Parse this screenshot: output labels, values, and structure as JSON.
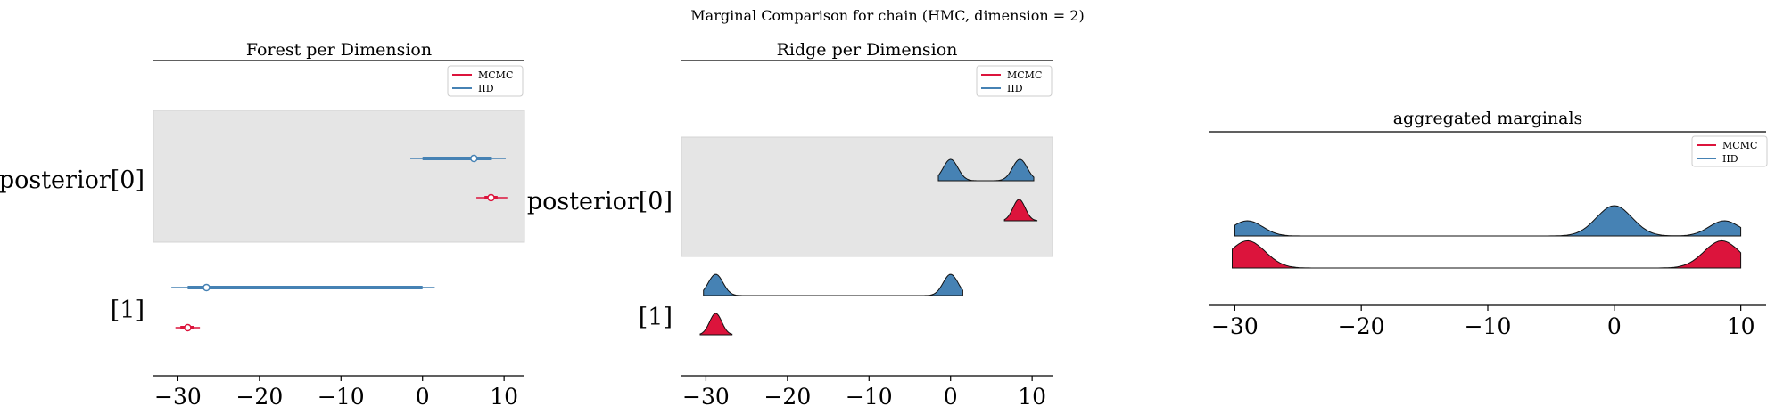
{
  "figure": {
    "suptitle": "Marginal Comparison for chain (HMC, dimension = 2)"
  },
  "colors": {
    "mcmc": "#dc143c",
    "iid": "#4682b4",
    "band": "#e5e5e5"
  },
  "chart_data": [
    {
      "type": "forest",
      "title": "Forest per Dimension",
      "xlim": [
        -33,
        12.5
      ],
      "xticks": [
        -30,
        -20,
        -10,
        0,
        10
      ],
      "xtick_labels": [
        "−30",
        "−20",
        "−10",
        "0",
        "10"
      ],
      "row_labels": [
        "posterior[0]",
        "[1]"
      ],
      "legend": {
        "placement": "top-right",
        "entries": [
          "MCMC",
          "IID"
        ]
      },
      "rows": [
        {
          "label": "posterior[0]",
          "shaded": true,
          "series": [
            {
              "name": "IID",
              "hdi94": [
                -1.5,
                10.2
              ],
              "iqr": [
                0.0,
                8.5
              ],
              "point": 6.3
            },
            {
              "name": "MCMC",
              "hdi94": [
                6.6,
                10.4
              ],
              "iqr": [
                7.6,
                9.2
              ],
              "point": 8.4
            }
          ]
        },
        {
          "label": "[1]",
          "shaded": false,
          "series": [
            {
              "name": "IID",
              "hdi94": [
                -30.8,
                1.5
              ],
              "iqr": [
                -28.8,
                0.0
              ],
              "point": -26.5
            },
            {
              "name": "MCMC",
              "hdi94": [
                -30.3,
                -27.3
              ],
              "iqr": [
                -29.7,
                -28.0
              ],
              "point": -28.8
            }
          ]
        }
      ]
    },
    {
      "type": "ridge",
      "title": "Ridge per Dimension",
      "xlim": [
        -33,
        12.5
      ],
      "xticks": [
        -30,
        -20,
        -10,
        0,
        10
      ],
      "xtick_labels": [
        "−30",
        "−20",
        "−10",
        "0",
        "10"
      ],
      "row_labels": [
        "posterior[0]",
        "[1]"
      ],
      "legend": {
        "placement": "top-right",
        "entries": [
          "MCMC",
          "IID"
        ]
      },
      "rows": [
        {
          "label": "posterior[0]",
          "shaded": true,
          "series": [
            {
              "name": "IID",
              "range": [
                -1.5,
                10.2
              ],
              "peaks": [
                {
                  "mu": 0.0,
                  "sd": 0.9,
                  "h": 1.0
                },
                {
                  "mu": 8.5,
                  "sd": 0.9,
                  "h": 1.0
                }
              ]
            },
            {
              "name": "MCMC",
              "range": [
                6.6,
                10.6
              ],
              "peaks": [
                {
                  "mu": 8.4,
                  "sd": 0.75,
                  "h": 1.0
                }
              ]
            }
          ]
        },
        {
          "label": "[1]",
          "shaded": false,
          "series": [
            {
              "name": "IID",
              "range": [
                -30.3,
                1.5
              ],
              "peaks": [
                {
                  "mu": -28.8,
                  "sd": 0.9,
                  "h": 1.0
                },
                {
                  "mu": 0.0,
                  "sd": 0.9,
                  "h": 1.0
                }
              ]
            },
            {
              "name": "MCMC",
              "range": [
                -30.7,
                -26.8
              ],
              "peaks": [
                {
                  "mu": -28.8,
                  "sd": 0.75,
                  "h": 1.0
                }
              ]
            }
          ]
        }
      ]
    },
    {
      "type": "ridge",
      "title": "aggregated marginals",
      "xlim": [
        -32,
        12
      ],
      "xticks": [
        -30,
        -20,
        -10,
        0,
        10
      ],
      "xtick_labels": [
        "−30",
        "−20",
        "−10",
        "0",
        "10"
      ],
      "legend": {
        "placement": "top-right",
        "entries": [
          "MCMC",
          "IID"
        ]
      },
      "series": [
        {
          "name": "IID",
          "range": [
            -30.0,
            10.0
          ],
          "peaks": [
            {
              "mu": -29.0,
              "sd": 1.2,
              "h": 0.5
            },
            {
              "mu": 0.0,
              "sd": 1.4,
              "h": 1.0
            },
            {
              "mu": 8.7,
              "sd": 1.2,
              "h": 0.5
            }
          ]
        },
        {
          "name": "MCMC",
          "range": [
            -30.2,
            10.0
          ],
          "peaks": [
            {
              "mu": -29.0,
              "sd": 1.4,
              "h": 0.9
            },
            {
              "mu": 8.5,
              "sd": 1.4,
              "h": 0.9
            }
          ]
        }
      ]
    }
  ]
}
